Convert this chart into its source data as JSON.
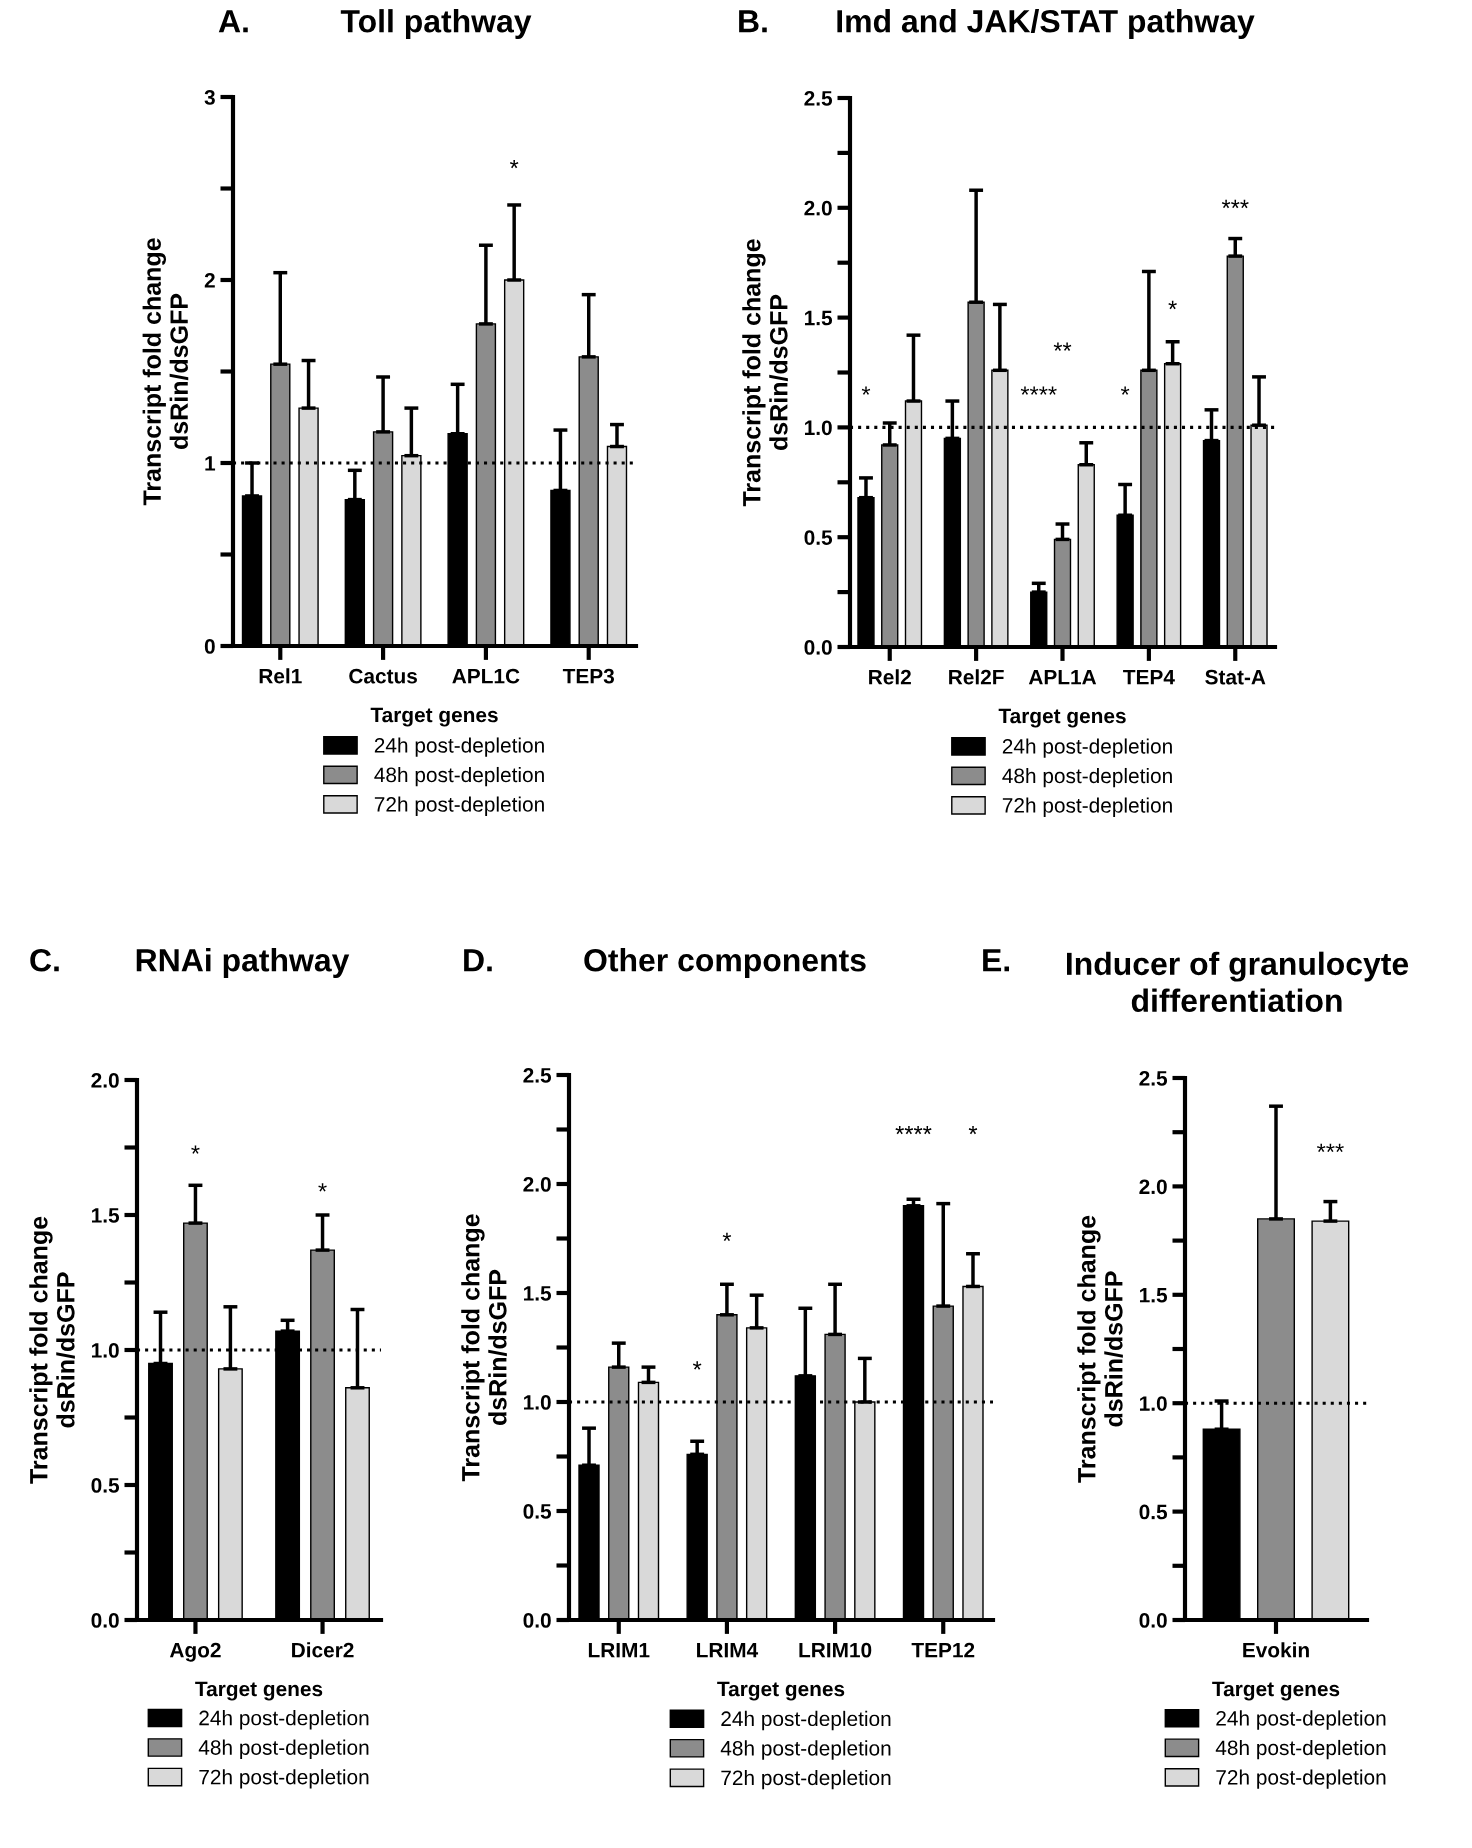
{
  "chart_data": [
    {
      "type": "bar",
      "title": "Toll pathway",
      "xlabel": "Target genes",
      "ylabel": "Transcript fold change\ndsRin/dsGFP",
      "legend": "bottom",
      "categories": [
        "Rel1",
        "Cactus",
        "APL1C",
        "TEP3"
      ],
      "series": [
        {
          "name": "24h post-depletion",
          "color": "#000000",
          "values": [
            0.82,
            0.8,
            1.16,
            0.85
          ],
          "errors": [
            [
              0.82,
              1.0
            ],
            [
              0.8,
              0.96
            ],
            [
              1.16,
              1.43
            ],
            [
              0.85,
              1.18
            ]
          ]
        },
        {
          "name": "48h post-depletion",
          "color": "#8c8c8c",
          "values": [
            1.54,
            1.17,
            1.76,
            1.58
          ],
          "errors": [
            [
              1.54,
              2.04
            ],
            [
              1.17,
              1.47
            ],
            [
              1.76,
              2.19
            ],
            [
              1.58,
              1.92
            ]
          ]
        },
        {
          "name": "72h post-depletion",
          "color": "#d9d9d9",
          "values": [
            1.3,
            1.04,
            2.0,
            1.09
          ],
          "errors": [
            [
              1.3,
              1.56
            ],
            [
              1.04,
              1.3
            ],
            [
              2.0,
              2.41
            ],
            [
              1.09,
              1.21
            ]
          ]
        }
      ],
      "ylim": [
        0,
        3
      ],
      "yticks": [
        0,
        {
          "value": 0.5,
          "label": null
        },
        1,
        {
          "value": 1.5,
          "label": null
        },
        2,
        {
          "value": 2.5,
          "label": null
        },
        3
      ],
      "ref_lines": [
        {
          "axis": "y",
          "value": 1,
          "line_style": "dotted",
          "color": "#000000"
        }
      ],
      "annotations": [
        "A.",
        "*"
      ]
    },
    {
      "type": "bar",
      "title": "Imd and JAK/STAT pathway",
      "xlabel": "Target genes",
      "ylabel": "Transcript fold change\ndsRin/dsGFP",
      "legend": "bottom",
      "categories": [
        "Rel2",
        "Rel2F",
        "APL1A",
        "TEP4",
        "Stat-A"
      ],
      "series": [
        {
          "name": "24h post-depletion",
          "color": "#000000",
          "values": [
            0.68,
            0.95,
            0.25,
            0.6,
            0.94
          ],
          "errors": [
            [
              0.68,
              0.77
            ],
            [
              0.95,
              1.12
            ],
            [
              0.25,
              0.29
            ],
            [
              0.6,
              0.74
            ],
            [
              0.94,
              1.08
            ]
          ]
        },
        {
          "name": "48h post-depletion",
          "color": "#8c8c8c",
          "values": [
            0.92,
            1.57,
            0.49,
            1.26,
            1.78
          ],
          "errors": [
            [
              0.92,
              1.02
            ],
            [
              1.57,
              2.08
            ],
            [
              0.49,
              0.56
            ],
            [
              1.26,
              1.71
            ],
            [
              1.78,
              1.86
            ]
          ]
        },
        {
          "name": "72h post-depletion",
          "color": "#d9d9d9",
          "values": [
            1.12,
            1.26,
            0.83,
            1.29,
            1.01
          ],
          "errors": [
            [
              1.12,
              1.42
            ],
            [
              1.26,
              1.56
            ],
            [
              0.83,
              0.93
            ],
            [
              1.29,
              1.39
            ],
            [
              1.01,
              1.23
            ]
          ]
        }
      ],
      "ylim": [
        0,
        2.5
      ],
      "yticks": [
        {
          "value": 0,
          "label": "0.0"
        },
        {
          "value": 0.25,
          "label": null
        },
        {
          "value": 0.5,
          "label": "0.5"
        },
        {
          "value": 0.75,
          "label": null
        },
        {
          "value": 1,
          "label": "1.0"
        },
        {
          "value": 1.25,
          "label": null
        },
        {
          "value": 1.5,
          "label": "1.5"
        },
        {
          "value": 1.75,
          "label": null
        },
        {
          "value": 2,
          "label": "2.0"
        },
        {
          "value": 2.25,
          "label": null
        },
        {
          "value": 2.5,
          "label": "2.5"
        }
      ],
      "ref_lines": [
        {
          "axis": "y",
          "value": 1,
          "line_style": "dotted",
          "color": "#000000"
        }
      ],
      "annotations": [
        "B.",
        "*",
        "****",
        "**",
        "*",
        "*",
        "***"
      ]
    },
    {
      "type": "bar",
      "title": "RNAi pathway",
      "xlabel": "Target genes",
      "ylabel": "Transcript fold change\ndsRin/dsGFP",
      "legend": "bottom",
      "categories": [
        "Ago2",
        "Dicer2"
      ],
      "series": [
        {
          "name": "24h post-depletion",
          "color": "#000000",
          "values": [
            0.95,
            1.07
          ],
          "errors": [
            [
              0.95,
              1.14
            ],
            [
              1.07,
              1.11
            ]
          ]
        },
        {
          "name": "48h post-depletion",
          "color": "#8c8c8c",
          "values": [
            1.47,
            1.37
          ],
          "errors": [
            [
              1.47,
              1.61
            ],
            [
              1.37,
              1.5
            ]
          ]
        },
        {
          "name": "72h post-depletion",
          "color": "#d9d9d9",
          "values": [
            0.93,
            0.86
          ],
          "errors": [
            [
              0.93,
              1.16
            ],
            [
              0.86,
              1.15
            ]
          ]
        }
      ],
      "ylim": [
        0,
        2
      ],
      "yticks": [
        {
          "value": 0,
          "label": "0.0"
        },
        {
          "value": 0.25,
          "label": null
        },
        {
          "value": 0.5,
          "label": "0.5"
        },
        {
          "value": 0.75,
          "label": null
        },
        {
          "value": 1,
          "label": "1.0"
        },
        {
          "value": 1.25,
          "label": null
        },
        {
          "value": 1.5,
          "label": "1.5"
        },
        {
          "value": 1.75,
          "label": null
        },
        {
          "value": 2,
          "label": "2.0"
        }
      ],
      "ref_lines": [
        {
          "axis": "y",
          "value": 1,
          "line_style": "dotted",
          "color": "#000000"
        }
      ],
      "annotations": [
        "C.",
        "*",
        "*"
      ]
    },
    {
      "type": "bar",
      "title": "Other components",
      "xlabel": "Target genes",
      "ylabel": "Transcript fold change\ndsRin/dsGFP",
      "legend": "bottom",
      "categories": [
        "LRIM1",
        "LRIM4",
        "LRIM10",
        "TEP12"
      ],
      "series": [
        {
          "name": "24h post-depletion",
          "color": "#000000",
          "values": [
            0.71,
            0.76,
            1.12,
            1.9
          ],
          "errors": [
            [
              0.71,
              0.88
            ],
            [
              0.76,
              0.82
            ],
            [
              1.12,
              1.43
            ],
            [
              1.9,
              1.93
            ]
          ]
        },
        {
          "name": "48h post-depletion",
          "color": "#8c8c8c",
          "values": [
            1.16,
            1.4,
            1.31,
            1.44
          ],
          "errors": [
            [
              1.16,
              1.27
            ],
            [
              1.4,
              1.54
            ],
            [
              1.31,
              1.54
            ],
            [
              1.44,
              1.91
            ]
          ]
        },
        {
          "name": "72h post-depletion",
          "color": "#d9d9d9",
          "values": [
            1.09,
            1.34,
            1.0,
            1.53
          ],
          "errors": [
            [
              1.09,
              1.16
            ],
            [
              1.34,
              1.49
            ],
            [
              1.0,
              1.2
            ],
            [
              1.53,
              1.68
            ]
          ]
        }
      ],
      "ylim": [
        0,
        2.5
      ],
      "yticks": [
        {
          "value": 0,
          "label": "0.0"
        },
        {
          "value": 0.25,
          "label": null
        },
        {
          "value": 0.5,
          "label": "0.5"
        },
        {
          "value": 0.75,
          "label": null
        },
        {
          "value": 1,
          "label": "1.0"
        },
        {
          "value": 1.25,
          "label": null
        },
        {
          "value": 1.5,
          "label": "1.5"
        },
        {
          "value": 1.75,
          "label": null
        },
        {
          "value": 2,
          "label": "2.0"
        },
        {
          "value": 2.25,
          "label": null
        },
        {
          "value": 2.5,
          "label": "2.5"
        }
      ],
      "ref_lines": [
        {
          "axis": "y",
          "value": 1,
          "line_style": "dotted",
          "color": "#000000"
        }
      ],
      "annotations": [
        "D.",
        "*",
        "*",
        "****",
        "*"
      ]
    },
    {
      "type": "bar",
      "title": "Inducer of granulocyte\ndifferentiation",
      "xlabel": "Target genes",
      "ylabel": "Transcript fold change\ndsRin/dsGFP",
      "legend": "bottom",
      "categories": [
        "Evokin"
      ],
      "series": [
        {
          "name": "24h post-depletion",
          "color": "#000000",
          "values": [
            0.88
          ],
          "errors": [
            [
              0.88,
              1.01
            ]
          ]
        },
        {
          "name": "48h post-depletion",
          "color": "#8c8c8c",
          "values": [
            1.85
          ],
          "errors": [
            [
              1.85,
              2.37
            ]
          ]
        },
        {
          "name": "72h post-depletion",
          "color": "#d9d9d9",
          "values": [
            1.84
          ],
          "errors": [
            [
              1.84,
              1.93
            ]
          ]
        }
      ],
      "ylim": [
        0,
        2.5
      ],
      "yticks": [
        {
          "value": 0,
          "label": "0.0"
        },
        {
          "value": 0.25,
          "label": null
        },
        {
          "value": 0.5,
          "label": "0.5"
        },
        {
          "value": 0.75,
          "label": null
        },
        {
          "value": 1,
          "label": "1.0"
        },
        {
          "value": 1.25,
          "label": null
        },
        {
          "value": 1.5,
          "label": "1.5"
        },
        {
          "value": 1.75,
          "label": null
        },
        {
          "value": 2,
          "label": "2.0"
        },
        {
          "value": 2.25,
          "label": null
        },
        {
          "value": 2.5,
          "label": "2.5"
        }
      ],
      "ref_lines": [
        {
          "axis": "y",
          "value": 1,
          "line_style": "dotted",
          "color": "#000000"
        }
      ],
      "annotations": [
        "E.",
        "***"
      ]
    }
  ]
}
